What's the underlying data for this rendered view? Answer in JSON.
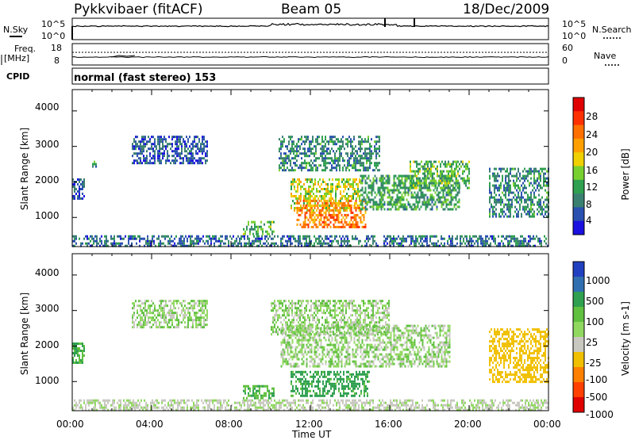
{
  "header": {
    "station": "Pykkvibaer (fitACF)",
    "beam": "Beam 05",
    "date": "18/Dec/2009"
  },
  "nsky_panel": {
    "left_label": "N.Sky",
    "right_label": "N.Search",
    "left_ticks": [
      "10^5",
      "10^0"
    ],
    "right_ticks": [
      "10^5",
      "10^0"
    ]
  },
  "freq_panel": {
    "left_label_1": "Freq.",
    "left_label_2": "[MHz]",
    "right_label": "Nave",
    "left_ticks": [
      "18",
      "8"
    ],
    "right_ticks": [
      "60",
      "0"
    ]
  },
  "cpid_panel": {
    "label": "CPID",
    "text": "normal (fast stereo) 153"
  },
  "axes": {
    "ylabel": "Slant Range [km]",
    "xlabel": "Time UT",
    "yticks": [
      "4000",
      "3000",
      "2000",
      "1000"
    ],
    "xticks": [
      "00:00",
      "04:00",
      "08:00",
      "12:00",
      "16:00",
      "20:00",
      "00:00"
    ]
  },
  "chart_data": [
    {
      "type": "heatmap",
      "name": "power",
      "ylabel": "Slant Range [km]",
      "xlabel": "Time UT",
      "x_range": [
        0,
        24
      ],
      "y_range": [
        180,
        4600
      ],
      "colorbar": {
        "label": "Power [dB]",
        "ticks": [
          "28",
          "24",
          "20",
          "16",
          "12",
          "8",
          "4"
        ],
        "colors": [
          "#e00000",
          "#ff3000",
          "#ff7000",
          "#ffa000",
          "#f0d000",
          "#78d030",
          "#2ea050",
          "#3a8070",
          "#2a50b0",
          "#1a10e0"
        ]
      },
      "regions": [
        {
          "t0": 0.0,
          "t1": 0.6,
          "r0": 1500,
          "r1": 2100,
          "level": 4
        },
        {
          "t0": 1.0,
          "t1": 1.2,
          "r0": 2450,
          "r1": 2600,
          "level": 10
        },
        {
          "t0": 3.0,
          "t1": 6.8,
          "r0": 2500,
          "r1": 3300,
          "level": 4
        },
        {
          "t0": 8.6,
          "t1": 10.2,
          "r0": 500,
          "r1": 900,
          "level": 12
        },
        {
          "t0": 10.4,
          "t1": 15.5,
          "r0": 2300,
          "r1": 3300,
          "level": 8
        },
        {
          "t0": 11.0,
          "t1": 14.5,
          "r0": 1200,
          "r1": 2100,
          "level": 16
        },
        {
          "t0": 11.3,
          "t1": 14.8,
          "r0": 700,
          "r1": 1500,
          "level": 24
        },
        {
          "t0": 14.5,
          "t1": 19.5,
          "r0": 1200,
          "r1": 2200,
          "level": 10
        },
        {
          "t0": 17.0,
          "t1": 20.0,
          "r0": 1800,
          "r1": 2600,
          "level": 12
        },
        {
          "t0": 21.0,
          "t1": 24.0,
          "r0": 1000,
          "r1": 2400,
          "level": 8
        },
        {
          "t0": 0.0,
          "t1": 24.0,
          "r0": 180,
          "r1": 500,
          "level": 6
        }
      ]
    },
    {
      "type": "heatmap",
      "name": "velocity",
      "ylabel": "Slant Range [km]",
      "xlabel": "Time UT",
      "x_range": [
        0,
        24
      ],
      "y_range": [
        180,
        4600
      ],
      "colorbar": {
        "label": "Velocity [m s-1]",
        "ticks": [
          "1000",
          "500",
          "100",
          "25",
          "-25",
          "-100",
          "-500",
          "-1000"
        ],
        "colors": [
          "#2040c0",
          "#3070b0",
          "#2ea050",
          "#60c040",
          "#90d860",
          "#c8c8c0",
          "#f0c000",
          "#ff8000",
          "#ff4000",
          "#e00000"
        ]
      },
      "regions": [
        {
          "t0": 0.0,
          "t1": 0.6,
          "r0": 1500,
          "r1": 2100,
          "level": 60
        },
        {
          "t0": 3.0,
          "t1": 6.8,
          "r0": 2500,
          "r1": 3300,
          "level": 0
        },
        {
          "t0": 8.6,
          "t1": 10.2,
          "r0": 500,
          "r1": 900,
          "level": 60
        },
        {
          "t0": 10.0,
          "t1": 16.0,
          "r0": 2300,
          "r1": 3300,
          "level": 0
        },
        {
          "t0": 10.5,
          "t1": 19.0,
          "r0": 1400,
          "r1": 2600,
          "level": 0
        },
        {
          "t0": 11.0,
          "t1": 15.0,
          "r0": 600,
          "r1": 1300,
          "level": 80
        },
        {
          "t0": 21.0,
          "t1": 24.0,
          "r0": 1000,
          "r1": 2500,
          "level": -200
        },
        {
          "t0": 0.0,
          "t1": 24.0,
          "r0": 180,
          "r1": 500,
          "level": -20
        }
      ]
    }
  ]
}
